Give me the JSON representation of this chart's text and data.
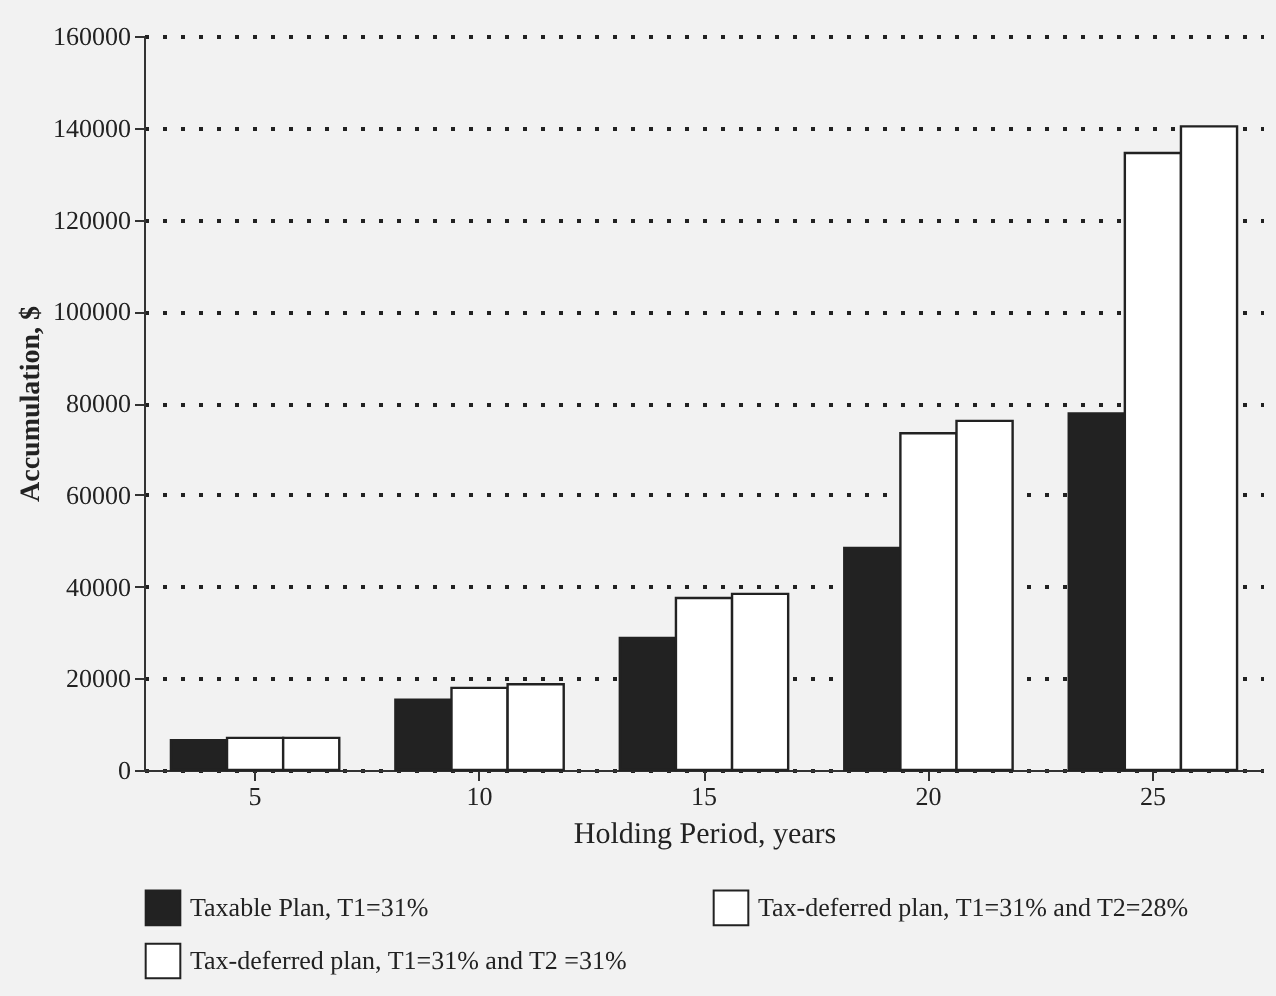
{
  "chart_data": {
    "type": "bar",
    "xlabel": "Holding Period, years",
    "ylabel": "Accumulation, $",
    "categories": [
      "5",
      "10",
      "15",
      "20",
      "25"
    ],
    "series": [
      {
        "name": "Taxable Plan, T1=31%",
        "color": "#222222",
        "values": [
          6500,
          15300,
          28800,
          48400,
          77700
        ]
      },
      {
        "name": "Tax-deferred plan, T1=31% and T2=28%",
        "color": "#ffffff",
        "values": [
          7000,
          17900,
          37500,
          73400,
          134500
        ]
      },
      {
        "name": "Tax-deferred plan, T1=31% and T2 =31%",
        "color": "#ffffff",
        "values": [
          7000,
          18700,
          38400,
          76100,
          140300
        ]
      }
    ],
    "ylim": [
      0,
      160000
    ],
    "yticks": [
      0,
      20000,
      40000,
      60000,
      80000,
      100000,
      120000,
      140000,
      160000
    ],
    "grid": "y",
    "legend": "bottom"
  }
}
